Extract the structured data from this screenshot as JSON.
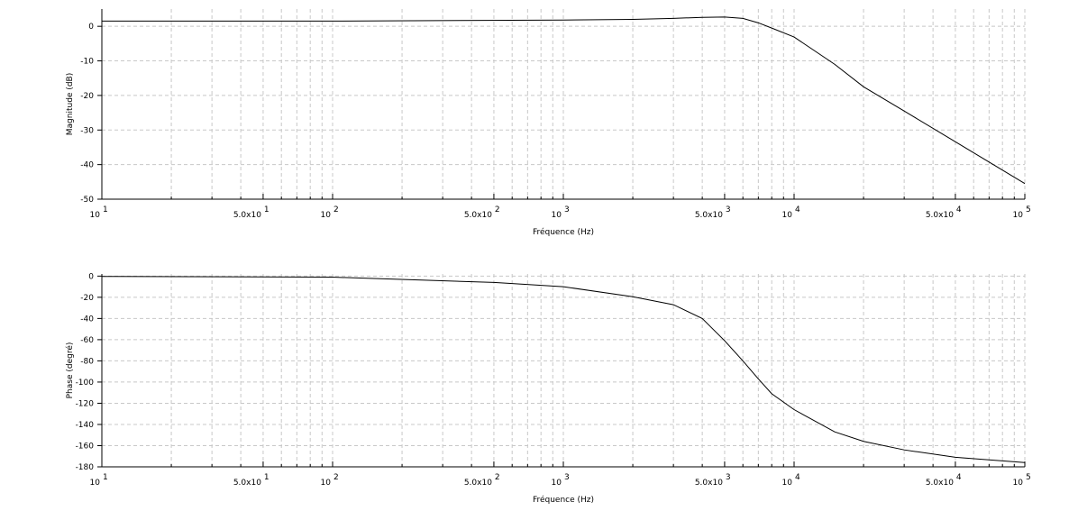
{
  "chart_data": [
    {
      "type": "line",
      "ylabel": "Magnitude (dB)",
      "xlabel": "Fréquence (Hz)",
      "log_x": true,
      "grid": true,
      "x": [
        10,
        100,
        1000,
        2000,
        3000,
        4000,
        5000,
        6000,
        7000,
        8000,
        10000,
        15000,
        20000,
        30000,
        50000,
        100000
      ],
      "series": [
        {
          "color": "#000000",
          "values": [
            1.5,
            1.5,
            1.8,
            2.0,
            2.3,
            2.6,
            2.7,
            2.3,
            1.0,
            -0.5,
            -3.1,
            -11,
            -17.5,
            -24.5,
            -33.4,
            -45.5
          ]
        }
      ],
      "xlim": [
        10,
        100000
      ],
      "xticks": [
        {
          "value": 10,
          "label": "10",
          "sup": "1"
        },
        {
          "value": 50,
          "label": "5.0x10",
          "sup": "1"
        },
        {
          "value": 100,
          "label": "10",
          "sup": "2"
        },
        {
          "value": 500,
          "label": "5.0x10",
          "sup": "2"
        },
        {
          "value": 1000,
          "label": "10",
          "sup": "3"
        },
        {
          "value": 5000,
          "label": "5.0x10",
          "sup": "3"
        },
        {
          "value": 10000,
          "label": "10",
          "sup": "4"
        },
        {
          "value": 50000,
          "label": "5.0x10",
          "sup": "4"
        },
        {
          "value": 100000,
          "label": "10",
          "sup": "5"
        }
      ],
      "xminor": [
        20,
        30,
        40,
        60,
        70,
        80,
        90,
        200,
        300,
        400,
        600,
        700,
        800,
        900,
        2000,
        3000,
        4000,
        6000,
        7000,
        8000,
        9000,
        20000,
        30000,
        40000,
        60000,
        70000,
        80000,
        90000
      ],
      "ylim": [
        -50,
        5
      ],
      "yticks": [
        0,
        -10,
        -20,
        -30,
        -40,
        -50
      ]
    },
    {
      "type": "line",
      "ylabel": "Phase (degré)",
      "xlabel": "Fréquence (Hz)",
      "log_x": true,
      "grid": true,
      "x": [
        10,
        100,
        500,
        1000,
        2000,
        3000,
        4000,
        5000,
        6000,
        7000,
        8000,
        10000,
        15000,
        20000,
        30000,
        50000,
        100000
      ],
      "series": [
        {
          "color": "#000000",
          "values": [
            -0.3,
            -1,
            -6,
            -10,
            -19.5,
            -27,
            -40,
            -61,
            -80,
            -97,
            -111,
            -126,
            -147,
            -156,
            -164,
            -171,
            -176
          ]
        }
      ],
      "xlim": [
        10,
        100000
      ],
      "xticks": [
        {
          "value": 10,
          "label": "10",
          "sup": "1"
        },
        {
          "value": 50,
          "label": "5.0x10",
          "sup": "1"
        },
        {
          "value": 100,
          "label": "10",
          "sup": "2"
        },
        {
          "value": 500,
          "label": "5.0x10",
          "sup": "2"
        },
        {
          "value": 1000,
          "label": "10",
          "sup": "3"
        },
        {
          "value": 5000,
          "label": "5.0x10",
          "sup": "3"
        },
        {
          "value": 10000,
          "label": "10",
          "sup": "4"
        },
        {
          "value": 50000,
          "label": "5.0x10",
          "sup": "4"
        },
        {
          "value": 100000,
          "label": "10",
          "sup": "5"
        }
      ],
      "xminor": [
        20,
        30,
        40,
        60,
        70,
        80,
        90,
        200,
        300,
        400,
        600,
        700,
        800,
        900,
        2000,
        3000,
        4000,
        6000,
        7000,
        8000,
        9000,
        20000,
        30000,
        40000,
        60000,
        70000,
        80000,
        90000
      ],
      "ylim": [
        -180,
        2
      ],
      "yticks": [
        0,
        -20,
        -40,
        -60,
        -80,
        -100,
        -120,
        -140,
        -160,
        -180
      ]
    }
  ]
}
